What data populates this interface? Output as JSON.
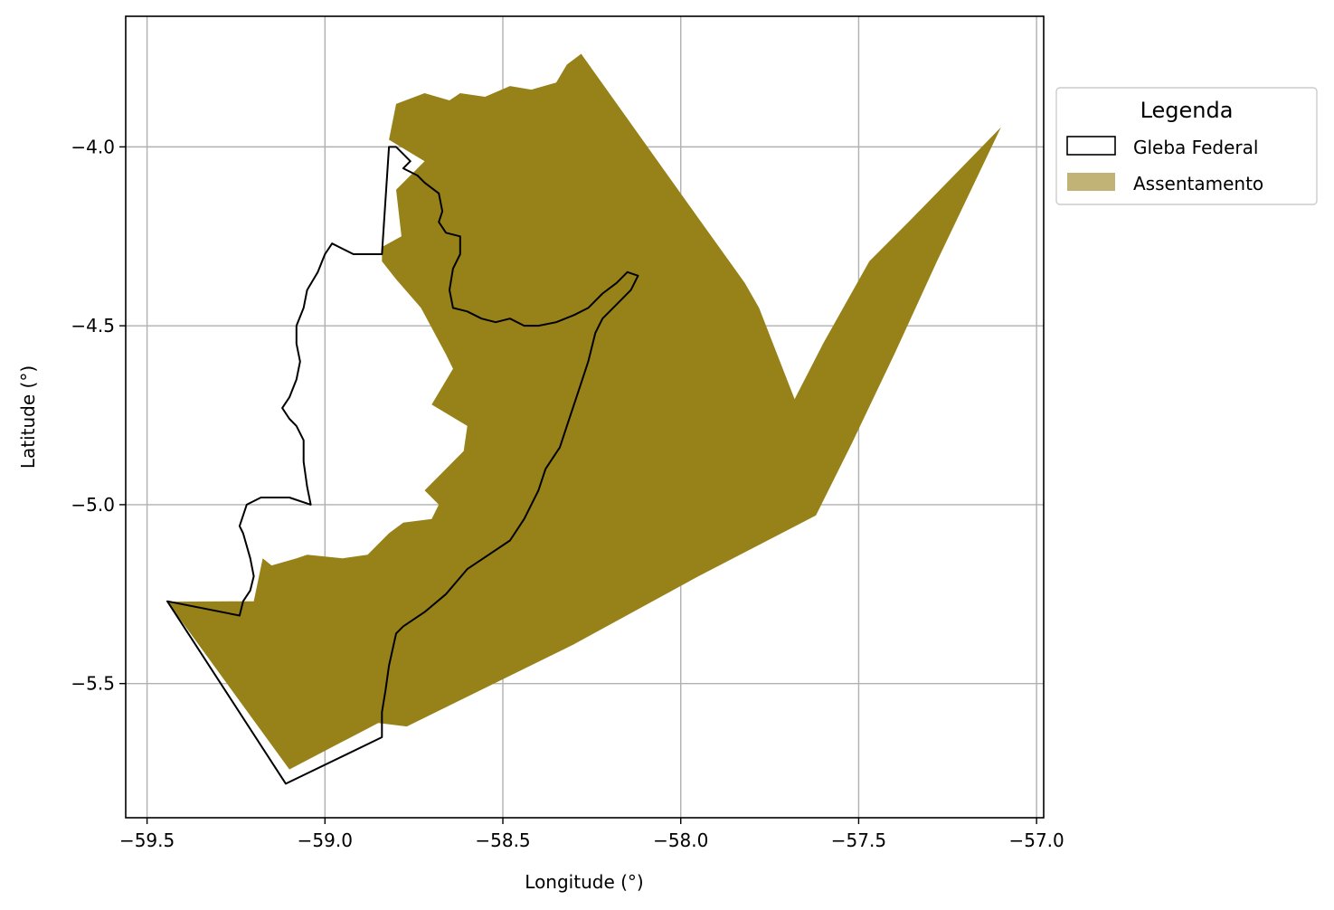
{
  "chart_data": {
    "type": "map",
    "xlabel": "Longitude (°)",
    "ylabel": "Latitude (°)",
    "xlim": [
      -59.56,
      -56.98
    ],
    "ylim": [
      -5.875,
      -3.635
    ],
    "grid": true,
    "xticks": [
      -59.5,
      -59.0,
      -58.5,
      -58.0,
      -57.5,
      -57.0
    ],
    "xtick_labels": [
      "−59.5",
      "−59.0",
      "−58.5",
      "−58.0",
      "−57.5",
      "−57.0"
    ],
    "yticks": [
      -4.0,
      -4.5,
      -5.0,
      -5.5
    ],
    "ytick_labels": [
      "−4.0",
      "−4.5",
      "−5.0",
      "−5.5"
    ],
    "legend": {
      "title": "Legenda",
      "placement": "outside-upper-right",
      "entries": [
        {
          "label": "Gleba Federal",
          "style": "outline",
          "color": "#000000"
        },
        {
          "label": "Assentamento",
          "style": "fill",
          "color": "#978119"
        }
      ]
    },
    "layers": {
      "assentamento": {
        "fill": "#978119",
        "polygons": [
          [
            [
              -59.443,
              -5.271
            ],
            [
              -59.2,
              -5.27
            ],
            [
              -59.175,
              -5.15
            ],
            [
              -59.15,
              -5.17
            ],
            [
              -59.08,
              -5.15
            ],
            [
              -59.05,
              -5.14
            ],
            [
              -58.95,
              -5.15
            ],
            [
              -58.88,
              -5.14
            ],
            [
              -58.82,
              -5.08
            ],
            [
              -58.78,
              -5.05
            ],
            [
              -58.7,
              -5.04
            ],
            [
              -58.68,
              -5.0
            ],
            [
              -58.72,
              -4.96
            ],
            [
              -58.66,
              -4.9
            ],
            [
              -58.61,
              -4.85
            ],
            [
              -58.6,
              -4.78
            ],
            [
              -58.7,
              -4.72
            ],
            [
              -58.64,
              -4.62
            ],
            [
              -58.66,
              -4.58
            ],
            [
              -58.73,
              -4.45
            ],
            [
              -58.8,
              -4.37
            ],
            [
              -58.84,
              -4.32
            ],
            [
              -58.84,
              -4.28
            ],
            [
              -58.785,
              -4.25
            ],
            [
              -58.8,
              -4.12
            ],
            [
              -58.72,
              -4.04
            ],
            [
              -58.82,
              -3.98
            ],
            [
              -58.8,
              -3.88
            ],
            [
              -58.72,
              -3.85
            ],
            [
              -58.65,
              -3.87
            ],
            [
              -58.62,
              -3.85
            ],
            [
              -58.55,
              -3.86
            ],
            [
              -58.48,
              -3.83
            ],
            [
              -58.42,
              -3.84
            ],
            [
              -58.35,
              -3.82
            ],
            [
              -58.32,
              -3.77
            ],
            [
              -58.28,
              -3.74
            ],
            [
              -57.95,
              -4.2
            ],
            [
              -57.82,
              -4.38
            ],
            [
              -57.78,
              -4.45
            ],
            [
              -57.68,
              -4.705
            ],
            [
              -57.6,
              -4.55
            ],
            [
              -57.47,
              -4.32
            ],
            [
              -57.35,
              -4.2
            ],
            [
              -57.1,
              -3.945
            ],
            [
              -57.28,
              -4.32
            ],
            [
              -57.4,
              -4.58
            ],
            [
              -57.52,
              -4.83
            ],
            [
              -57.62,
              -5.03
            ],
            [
              -57.95,
              -5.2
            ],
            [
              -58.3,
              -5.39
            ],
            [
              -58.77,
              -5.62
            ],
            [
              -58.85,
              -5.61
            ],
            [
              -59.1,
              -5.74
            ],
            [
              -59.443,
              -5.271
            ]
          ]
        ]
      },
      "gleba_federal": {
        "stroke": "#000000",
        "polygons": [
          [
            [
              -58.82,
              -4.0
            ],
            [
              -58.8,
              -4.0
            ],
            [
              -58.78,
              -4.02
            ],
            [
              -58.76,
              -4.04
            ],
            [
              -58.78,
              -4.06
            ],
            [
              -58.74,
              -4.08
            ],
            [
              -58.72,
              -4.1
            ],
            [
              -58.68,
              -4.13
            ],
            [
              -58.67,
              -4.18
            ],
            [
              -58.68,
              -4.21
            ],
            [
              -58.66,
              -4.24
            ],
            [
              -58.62,
              -4.25
            ],
            [
              -58.62,
              -4.3
            ],
            [
              -58.64,
              -4.34
            ],
            [
              -58.65,
              -4.4
            ],
            [
              -58.64,
              -4.45
            ],
            [
              -58.6,
              -4.46
            ],
            [
              -58.56,
              -4.48
            ],
            [
              -58.52,
              -4.49
            ],
            [
              -58.48,
              -4.48
            ],
            [
              -58.44,
              -4.5
            ],
            [
              -58.4,
              -4.5
            ],
            [
              -58.35,
              -4.49
            ],
            [
              -58.3,
              -4.47
            ],
            [
              -58.26,
              -4.45
            ],
            [
              -58.22,
              -4.41
            ],
            [
              -58.18,
              -4.38
            ],
            [
              -58.15,
              -4.35
            ],
            [
              -58.12,
              -4.36
            ],
            [
              -58.14,
              -4.4
            ],
            [
              -58.18,
              -4.44
            ],
            [
              -58.22,
              -4.48
            ],
            [
              -58.24,
              -4.52
            ],
            [
              -58.26,
              -4.6
            ],
            [
              -58.28,
              -4.66
            ],
            [
              -58.3,
              -4.72
            ],
            [
              -58.32,
              -4.78
            ],
            [
              -58.34,
              -4.84
            ],
            [
              -58.38,
              -4.9
            ],
            [
              -58.4,
              -4.96
            ],
            [
              -58.44,
              -5.04
            ],
            [
              -58.48,
              -5.1
            ],
            [
              -58.54,
              -5.14
            ],
            [
              -58.6,
              -5.18
            ],
            [
              -58.66,
              -5.25
            ],
            [
              -58.72,
              -5.3
            ],
            [
              -58.78,
              -5.34
            ],
            [
              -58.8,
              -5.36
            ],
            [
              -58.82,
              -5.45
            ],
            [
              -58.83,
              -5.52
            ],
            [
              -58.84,
              -5.58
            ],
            [
              -58.84,
              -5.65
            ],
            [
              -59.11,
              -5.78
            ],
            [
              -59.443,
              -5.27
            ],
            [
              -59.24,
              -5.31
            ],
            [
              -59.23,
              -5.27
            ],
            [
              -59.21,
              -5.24
            ],
            [
              -59.2,
              -5.2
            ],
            [
              -59.21,
              -5.15
            ],
            [
              -59.23,
              -5.08
            ],
            [
              -59.24,
              -5.06
            ],
            [
              -59.22,
              -5.0
            ],
            [
              -59.18,
              -4.98
            ],
            [
              -59.1,
              -4.98
            ],
            [
              -59.04,
              -5.0
            ],
            [
              -59.05,
              -4.95
            ],
            [
              -59.06,
              -4.88
            ],
            [
              -59.06,
              -4.82
            ],
            [
              -59.08,
              -4.78
            ],
            [
              -59.1,
              -4.76
            ],
            [
              -59.12,
              -4.73
            ],
            [
              -59.1,
              -4.7
            ],
            [
              -59.08,
              -4.65
            ],
            [
              -59.07,
              -4.6
            ],
            [
              -59.08,
              -4.55
            ],
            [
              -59.08,
              -4.5
            ],
            [
              -59.06,
              -4.45
            ],
            [
              -59.05,
              -4.4
            ],
            [
              -59.02,
              -4.35
            ],
            [
              -59.0,
              -4.3
            ],
            [
              -58.98,
              -4.27
            ],
            [
              -58.96,
              -4.28
            ],
            [
              -58.92,
              -4.3
            ],
            [
              -58.88,
              -4.3
            ],
            [
              -58.84,
              -4.3
            ],
            [
              -58.82,
              -4.0
            ]
          ]
        ]
      }
    }
  }
}
